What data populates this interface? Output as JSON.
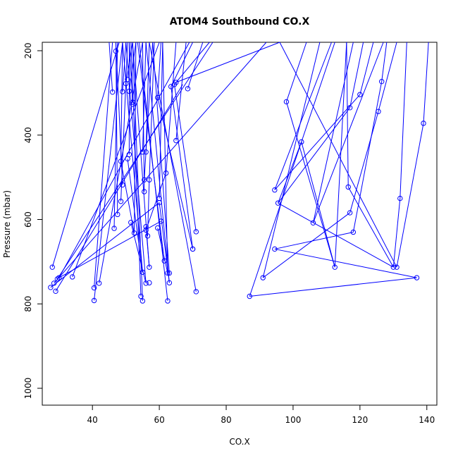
{
  "chart_data": {
    "type": "line",
    "title": "ATOM4 Southbound CO.X",
    "xlabel": "CO.X",
    "ylabel": "Pressure (mbar)",
    "xlim": [
      25,
      143
    ],
    "ylim": [
      1040,
      180
    ],
    "y_inverted": true,
    "x_ticks": [
      "40",
      "60",
      "80",
      "100",
      "120",
      "140"
    ],
    "y_ticks": [
      "200",
      "400",
      "600",
      "800",
      "1000"
    ],
    "grid": false,
    "color": "#0000ff",
    "left_cluster_points": [
      [
        47,
        201
      ],
      [
        46,
        298
      ],
      [
        49,
        297
      ],
      [
        50,
        278
      ],
      [
        50.5,
        268
      ],
      [
        51,
        296
      ],
      [
        52,
        322
      ],
      [
        52,
        327
      ],
      [
        59.5,
        311
      ],
      [
        63.5,
        285
      ],
      [
        64.5,
        280
      ],
      [
        68.5,
        290
      ],
      [
        65,
        275
      ],
      [
        65,
        413
      ],
      [
        55,
        440
      ],
      [
        56,
        440
      ],
      [
        51,
        446
      ],
      [
        50.5,
        456
      ],
      [
        48.5,
        462
      ],
      [
        62,
        490
      ],
      [
        55.5,
        506
      ],
      [
        57,
        506
      ],
      [
        49,
        518
      ],
      [
        55.5,
        534
      ],
      [
        60,
        550
      ],
      [
        48.5,
        557
      ],
      [
        60,
        560
      ],
      [
        47.5,
        588
      ],
      [
        51.5,
        607
      ],
      [
        60.5,
        604
      ],
      [
        59.5,
        620
      ],
      [
        56,
        617
      ],
      [
        56,
        625
      ],
      [
        52.5,
        632
      ],
      [
        56.5,
        639
      ],
      [
        46.5,
        621
      ],
      [
        71,
        629
      ],
      [
        70,
        670
      ],
      [
        70,
        670
      ],
      [
        28,
        713
      ],
      [
        57,
        713
      ],
      [
        34,
        736
      ],
      [
        30,
        738
      ],
      [
        29.5,
        741
      ],
      [
        28.5,
        751
      ],
      [
        42,
        751
      ],
      [
        56,
        751
      ],
      [
        57,
        750
      ],
      [
        63,
        750
      ],
      [
        27.5,
        761
      ],
      [
        40.5,
        762
      ],
      [
        29,
        770
      ],
      [
        61.5,
        698
      ],
      [
        63,
        727
      ],
      [
        62.5,
        727
      ],
      [
        55,
        725
      ],
      [
        71,
        771
      ],
      [
        54.5,
        782
      ],
      [
        55,
        793
      ],
      [
        40.5,
        792
      ],
      [
        62.5,
        793
      ]
    ],
    "right_cluster_points": [
      [
        98,
        321
      ],
      [
        117,
        335
      ],
      [
        120,
        304
      ],
      [
        126.5,
        273
      ],
      [
        125.5,
        344
      ],
      [
        139,
        372
      ],
      [
        102.5,
        416
      ],
      [
        94.5,
        530
      ],
      [
        116.5,
        523
      ],
      [
        132,
        550
      ],
      [
        95.5,
        561
      ],
      [
        117,
        584
      ],
      [
        106,
        608
      ],
      [
        118,
        630
      ],
      [
        94.5,
        670
      ],
      [
        112.5,
        713
      ],
      [
        130,
        713
      ],
      [
        131,
        713
      ],
      [
        91,
        738
      ],
      [
        137,
        738
      ],
      [
        87,
        782
      ]
    ],
    "segments": [
      [
        [
          47,
          201
        ],
        [
          48,
          180
        ]
      ],
      [
        [
          46,
          298
        ],
        [
          45,
          180
        ]
      ],
      [
        [
          49,
          297
        ],
        [
          50,
          180
        ]
      ],
      [
        [
          50,
          278
        ],
        [
          52,
          180
        ]
      ],
      [
        [
          51,
          296
        ],
        [
          53,
          180
        ]
      ],
      [
        [
          52,
          322
        ],
        [
          51,
          180
        ]
      ],
      [
        [
          59.5,
          311
        ],
        [
          60.5,
          180
        ]
      ],
      [
        [
          63.5,
          285
        ],
        [
          70,
          180
        ]
      ],
      [
        [
          64.5,
          280
        ],
        [
          75,
          180
        ]
      ],
      [
        [
          68.5,
          290
        ],
        [
          73,
          180
        ]
      ],
      [
        [
          65,
          275
        ],
        [
          96,
          180
        ]
      ],
      [
        [
          65,
          413
        ],
        [
          68,
          180
        ]
      ],
      [
        [
          55,
          440
        ],
        [
          56,
          180
        ]
      ],
      [
        [
          56,
          440
        ],
        [
          57,
          180
        ]
      ],
      [
        [
          51,
          446
        ],
        [
          51,
          180
        ]
      ],
      [
        [
          48.5,
          462
        ],
        [
          49,
          180
        ]
      ],
      [
        [
          62,
          490
        ],
        [
          65,
          180
        ]
      ],
      [
        [
          55.5,
          506
        ],
        [
          58,
          180
        ]
      ],
      [
        [
          57,
          506
        ],
        [
          58.5,
          180
        ]
      ],
      [
        [
          49,
          518
        ],
        [
          47,
          180
        ]
      ],
      [
        [
          55.5,
          534
        ],
        [
          55,
          180
        ]
      ],
      [
        [
          60,
          550
        ],
        [
          61,
          180
        ]
      ],
      [
        [
          48.5,
          557
        ],
        [
          50.5,
          180
        ]
      ],
      [
        [
          47.5,
          588
        ],
        [
          47,
          180
        ]
      ],
      [
        [
          46.5,
          621
        ],
        [
          47.5,
          180
        ]
      ],
      [
        [
          52.5,
          632
        ],
        [
          53,
          180
        ]
      ],
      [
        [
          28,
          713
        ],
        [
          48,
          180
        ]
      ],
      [
        [
          30,
          738
        ],
        [
          69,
          180
        ]
      ],
      [
        [
          29.5,
          741
        ],
        [
          76,
          180
        ]
      ],
      [
        [
          28.5,
          751
        ],
        [
          92,
          180
        ]
      ],
      [
        [
          34,
          736
        ],
        [
          60,
          180
        ]
      ],
      [
        [
          42,
          751
        ],
        [
          55,
          180
        ]
      ],
      [
        [
          40.5,
          762
        ],
        [
          46,
          180
        ]
      ],
      [
        [
          40.5,
          792
        ],
        [
          49,
          180
        ]
      ],
      [
        [
          55,
          725
        ],
        [
          49,
          180
        ]
      ],
      [
        [
          56,
          751
        ],
        [
          50,
          180
        ]
      ],
      [
        [
          57,
          713
        ],
        [
          52,
          180
        ]
      ],
      [
        [
          54.5,
          782
        ],
        [
          51.5,
          180
        ]
      ],
      [
        [
          55,
          793
        ],
        [
          52,
          180
        ]
      ],
      [
        [
          62.5,
          793
        ],
        [
          54,
          180
        ]
      ],
      [
        [
          63,
          750
        ],
        [
          56,
          180
        ]
      ],
      [
        [
          71,
          771
        ],
        [
          57,
          180
        ]
      ],
      [
        [
          61.5,
          698
        ],
        [
          53.5,
          180
        ]
      ],
      [
        [
          63,
          727
        ],
        [
          58,
          180
        ]
      ],
      [
        [
          62.5,
          727
        ],
        [
          61,
          180
        ]
      ],
      [
        [
          29,
          770
        ],
        [
          67,
          280
        ]
      ],
      [
        [
          27.5,
          761
        ],
        [
          60,
          560
        ]
      ],
      [
        [
          30,
          738
        ],
        [
          60.5,
          604
        ]
      ],
      [
        [
          71,
          629
        ],
        [
          64.5,
          280
        ]
      ],
      [
        [
          70,
          670
        ],
        [
          59.5,
          311
        ]
      ],
      [
        [
          70,
          670
        ],
        [
          63.5,
          285
        ]
      ],
      [
        [
          56.5,
          639
        ],
        [
          57,
          506
        ]
      ],
      [
        [
          56,
          625
        ],
        [
          62,
          490
        ]
      ],
      [
        [
          60,
          560
        ],
        [
          63,
          750
        ]
      ],
      [
        [
          59.5,
          620
        ],
        [
          62.5,
          727
        ]
      ],
      [
        [
          56,
          617
        ],
        [
          57,
          713
        ]
      ],
      [
        [
          51.5,
          607
        ],
        [
          56,
          751
        ]
      ],
      [
        [
          50.5,
          456
        ],
        [
          55,
          725
        ]
      ],
      [
        [
          48.5,
          462
        ],
        [
          52.5,
          632
        ]
      ],
      [
        [
          98,
          321
        ],
        [
          112.5,
          713
        ]
      ],
      [
        [
          98,
          321
        ],
        [
          104,
          180
        ]
      ],
      [
        [
          117,
          335
        ],
        [
          121,
          180
        ]
      ],
      [
        [
          117,
          335
        ],
        [
          95.5,
          561
        ]
      ],
      [
        [
          120,
          304
        ],
        [
          124,
          180
        ]
      ],
      [
        [
          120,
          304
        ],
        [
          94.5,
          530
        ]
      ],
      [
        [
          126.5,
          273
        ],
        [
          128,
          180
        ]
      ],
      [
        [
          126.5,
          273
        ],
        [
          118,
          630
        ]
      ],
      [
        [
          125.5,
          344
        ],
        [
          131,
          180
        ]
      ],
      [
        [
          125.5,
          344
        ],
        [
          117,
          584
        ]
      ],
      [
        [
          139,
          372
        ],
        [
          140.5,
          180
        ]
      ],
      [
        [
          139,
          372
        ],
        [
          131,
          713
        ]
      ],
      [
        [
          102.5,
          416
        ],
        [
          95.5,
          561
        ]
      ],
      [
        [
          102.5,
          416
        ],
        [
          112.5,
          713
        ]
      ],
      [
        [
          94.5,
          530
        ],
        [
          111.5,
          180
        ]
      ],
      [
        [
          116.5,
          523
        ],
        [
          130,
          713
        ]
      ],
      [
        [
          116.5,
          523
        ],
        [
          116,
          180
        ]
      ],
      [
        [
          132,
          550
        ],
        [
          134,
          180
        ]
      ],
      [
        [
          132,
          550
        ],
        [
          130,
          713
        ]
      ],
      [
        [
          95.5,
          561
        ],
        [
          130,
          713
        ]
      ],
      [
        [
          117,
          584
        ],
        [
          91,
          738
        ]
      ],
      [
        [
          106,
          608
        ],
        [
          118,
          180
        ]
      ],
      [
        [
          106,
          608
        ],
        [
          127,
          180
        ]
      ],
      [
        [
          118,
          630
        ],
        [
          94.5,
          670
        ]
      ],
      [
        [
          94.5,
          670
        ],
        [
          137,
          738
        ]
      ],
      [
        [
          112.5,
          713
        ],
        [
          116,
          180
        ]
      ],
      [
        [
          91,
          738
        ],
        [
          108,
          180
        ]
      ],
      [
        [
          137,
          738
        ],
        [
          87,
          782
        ]
      ],
      [
        [
          87,
          782
        ],
        [
          112.5,
          180
        ]
      ],
      [
        [
          131,
          713
        ],
        [
          96,
          180
        ]
      ]
    ]
  }
}
